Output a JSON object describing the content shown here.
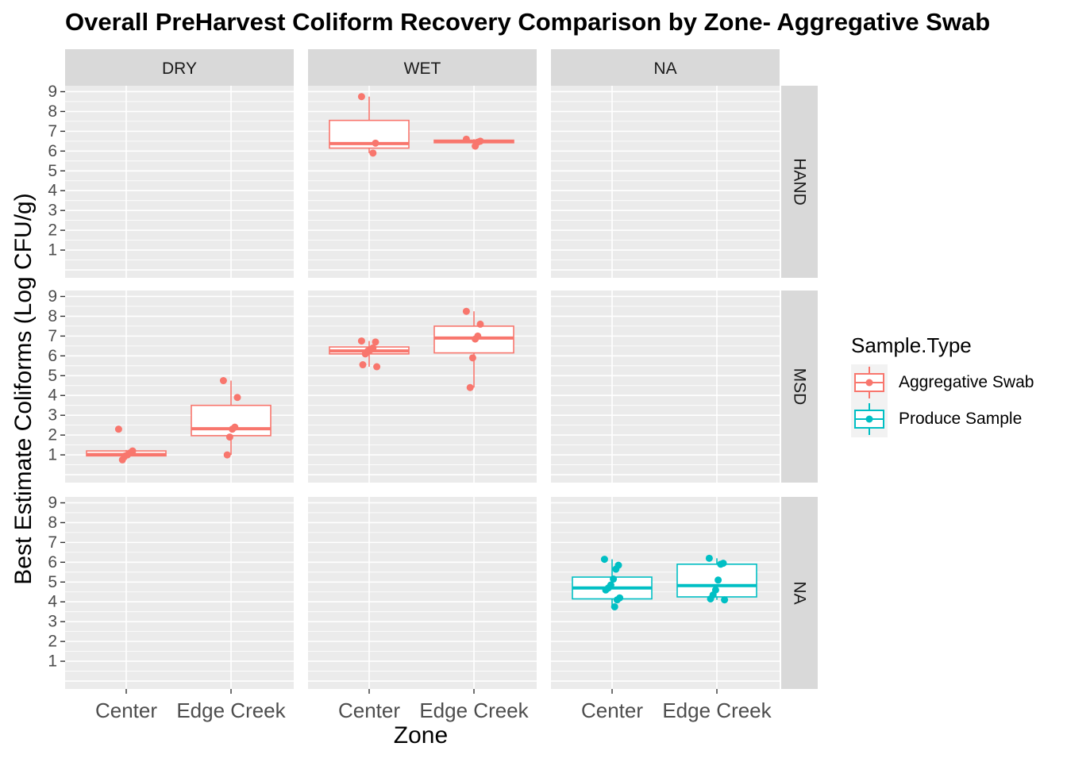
{
  "chart_data": {
    "type": "box",
    "title": "Overall PreHarvest Coliform Recovery Comparison by Zone- Aggregative Swab",
    "xlabel": "Zone",
    "ylabel": "Best Estimate Coliforms (Log CFU/g)",
    "col_facets": [
      "DRY",
      "WET",
      "NA"
    ],
    "row_facets": [
      "HAND",
      "MSD",
      "NA"
    ],
    "categories": [
      "Center",
      "Edge Creek"
    ],
    "yticks": [
      1,
      2,
      3,
      4,
      5,
      6,
      7,
      8,
      9
    ],
    "ylim": [
      -0.4,
      9.3
    ],
    "grid": true,
    "legend": {
      "title": "Sample.Type",
      "position": "right",
      "entries": [
        {
          "name": "Aggregative Swab",
          "color": "#F8766D"
        },
        {
          "name": "Produce Sample",
          "color": "#00BFC4"
        }
      ]
    },
    "boxes": [
      {
        "col": 1,
        "row": 0,
        "cat": 0,
        "series": 0,
        "min": 5.9,
        "q1": 6.15,
        "median": 6.38,
        "q3": 7.55,
        "max": 8.75,
        "points": [
          8.75,
          6.4,
          5.9
        ]
      },
      {
        "col": 1,
        "row": 0,
        "cat": 1,
        "series": 0,
        "min": 6.25,
        "q1": 6.42,
        "median": 6.48,
        "q3": 6.55,
        "max": 6.6,
        "points": [
          6.6,
          6.5,
          6.45,
          6.25
        ]
      },
      {
        "col": 0,
        "row": 1,
        "cat": 0,
        "series": 0,
        "min": 0.75,
        "q1": 0.95,
        "median": 1.02,
        "q3": 1.2,
        "max": 1.25,
        "points": [
          2.3,
          1.2,
          1.1,
          1.0,
          0.95,
          0.75
        ]
      },
      {
        "col": 0,
        "row": 1,
        "cat": 1,
        "series": 0,
        "min": 1.0,
        "q1": 1.97,
        "median": 2.32,
        "q3": 3.5,
        "max": 4.75,
        "points": [
          4.75,
          3.9,
          2.4,
          2.3,
          1.9,
          1.0
        ]
      },
      {
        "col": 1,
        "row": 1,
        "cat": 0,
        "series": 0,
        "min": 5.45,
        "q1": 6.1,
        "median": 6.25,
        "q3": 6.45,
        "max": 6.75,
        "points": [
          6.75,
          6.7,
          6.4,
          6.3,
          6.25,
          6.1,
          5.55,
          5.45
        ]
      },
      {
        "col": 1,
        "row": 1,
        "cat": 1,
        "series": 0,
        "min": 4.4,
        "q1": 6.15,
        "median": 6.9,
        "q3": 7.5,
        "max": 8.25,
        "points": [
          8.25,
          7.6,
          7.0,
          6.85,
          5.9,
          4.4
        ]
      },
      {
        "col": 2,
        "row": 2,
        "cat": 0,
        "series": 1,
        "min": 3.75,
        "q1": 4.15,
        "median": 4.7,
        "q3": 5.25,
        "max": 6.15,
        "points": [
          6.15,
          5.85,
          5.65,
          5.15,
          4.85,
          4.7,
          4.6,
          4.2,
          4.1,
          3.75
        ]
      },
      {
        "col": 2,
        "row": 2,
        "cat": 1,
        "series": 1,
        "min": 4.1,
        "q1": 4.25,
        "median": 4.82,
        "q3": 5.9,
        "max": 6.2,
        "points": [
          6.2,
          5.95,
          5.9,
          5.1,
          4.6,
          4.35,
          4.15,
          4.1
        ]
      }
    ]
  }
}
